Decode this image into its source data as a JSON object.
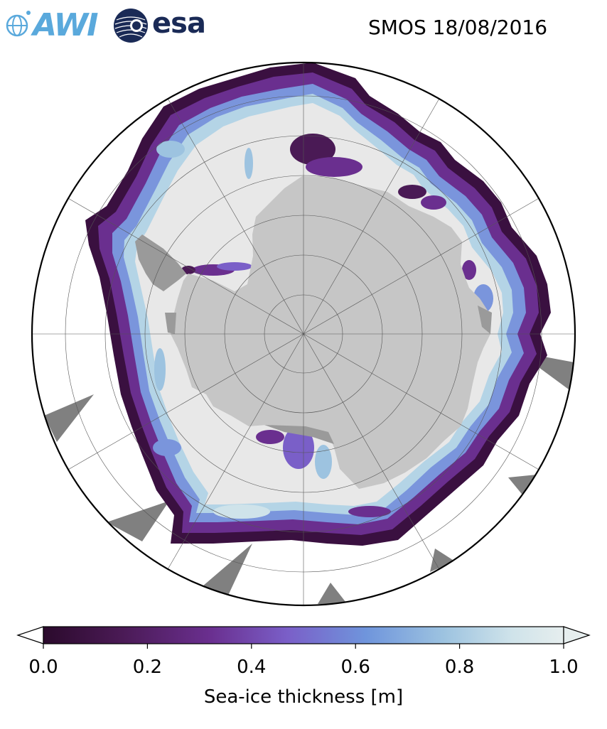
{
  "title": "SMOS 18/08/2016",
  "logos": {
    "awi_text": "AWI",
    "esa_text": "esa"
  },
  "colorbar": {
    "label": "Sea-ice thickness [m]",
    "ticks": [
      "0.0",
      "0.2",
      "0.4",
      "0.6",
      "0.8",
      "1.0"
    ],
    "range": [
      0.0,
      1.0
    ],
    "extend": "both",
    "colors": [
      "#2b0a2c",
      "#4a1a55",
      "#6a2f8f",
      "#7a5fc8",
      "#6f95dc",
      "#9dc3e0",
      "#cfe3ea",
      "#e6eeee"
    ]
  },
  "map": {
    "projection": "south-polar-stereographic",
    "land_color": "#c8c8c8",
    "ice_max_color": "#e8e8e8",
    "missing_data_color": "#808080",
    "graticule_color": "#555555"
  }
}
